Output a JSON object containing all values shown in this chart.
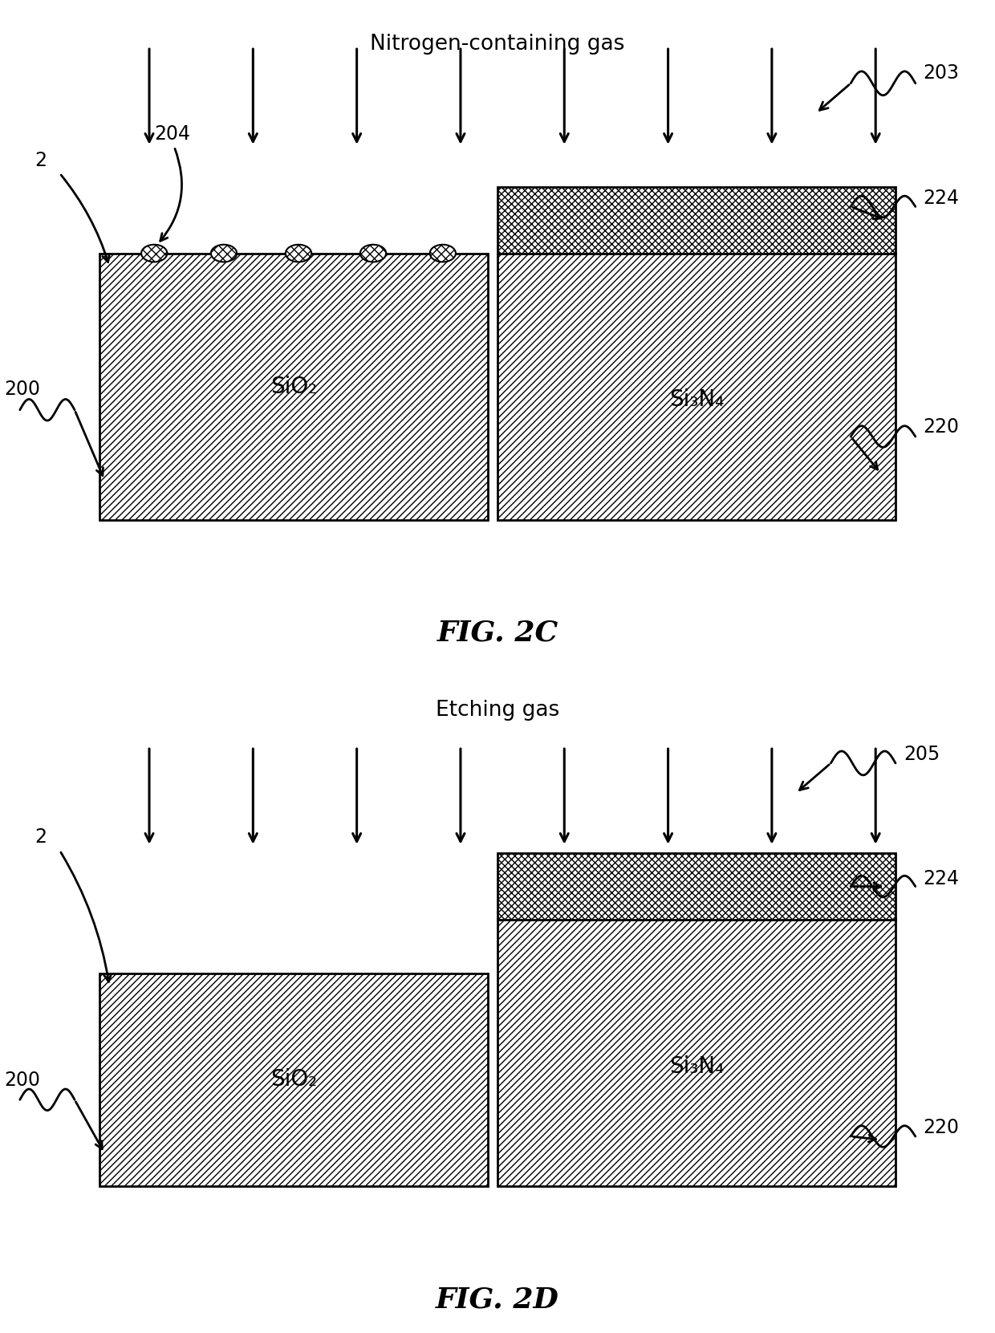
{
  "fig2c_title": "Nitrogen-containing gas",
  "fig2d_title": "Etching gas",
  "fig2c_label": "FIG. 2C",
  "fig2d_label": "FIG. 2D",
  "label_sio2": "SiO₂",
  "label_si3n4": "Si₃N₄",
  "bg_color": "#ffffff",
  "lw_block": 2.0,
  "lw_arrow": 2.0,
  "lw_ref": 2.0,
  "arrow_lw": 2.5,
  "title_fs": 19,
  "label_fs": 16,
  "block_fs": 20,
  "fig_label_fs": 26,
  "ref_fs": 17
}
